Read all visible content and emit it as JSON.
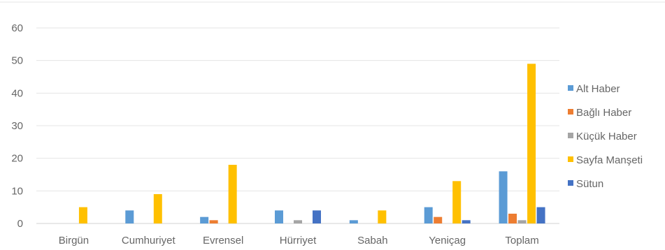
{
  "chart_data": {
    "type": "bar",
    "title": "",
    "xlabel": "",
    "ylabel": "",
    "ylim": [
      0,
      60
    ],
    "yticks": [
      0,
      10,
      20,
      30,
      40,
      50,
      60
    ],
    "grid": true,
    "legend_position": "right",
    "categories": [
      "Birgün",
      "Cumhuriyet",
      "Evrensel",
      "Hürriyet",
      "Sabah",
      "Yeniçag",
      "Toplam"
    ],
    "series": [
      {
        "name": "Alt Haber",
        "color": "#5b9bd5",
        "values": [
          0,
          4,
          2,
          4,
          1,
          5,
          16
        ]
      },
      {
        "name": "Bağlı Haber",
        "color": "#ed7d31",
        "values": [
          0,
          0,
          1,
          0,
          0,
          2,
          3
        ]
      },
      {
        "name": "Küçük Haber",
        "color": "#a5a5a5",
        "values": [
          0,
          0,
          0,
          1,
          0,
          0,
          1
        ]
      },
      {
        "name": "Sayfa Manşeti",
        "color": "#ffc000",
        "values": [
          5,
          9,
          18,
          0,
          4,
          13,
          49
        ]
      },
      {
        "name": "Sütun",
        "color": "#4472c4",
        "values": [
          0,
          0,
          0,
          4,
          0,
          1,
          5
        ]
      }
    ]
  }
}
